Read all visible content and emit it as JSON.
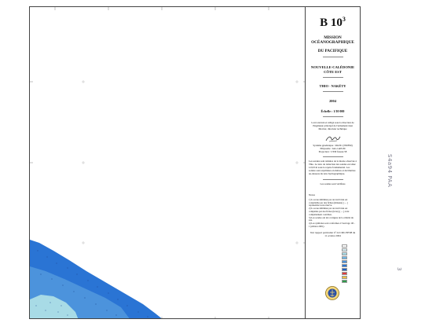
{
  "map": {
    "depth_colors": {
      "shallow": "#a8dbe6",
      "medium": "#4c93dc",
      "deep": "#2a74d4"
    }
  },
  "cartouche": {
    "sheet_id": "B 10",
    "sheet_sup": "3",
    "organisation_line1": "MISSION OCÉANOGRAPHIQUE",
    "organisation_line2": "DU PACIFIQUE",
    "region_line1": "NOUVELLE-CALÉDONIE",
    "region_line2": "CÔTE EST",
    "area": "THIO - NAKÉTY",
    "year": "2004",
    "scale": "Échelle : 1/10 000",
    "credit": "Levé exécuté et rédigé sous la direction de l'ingénieur principal de l'armement Jean Mercier, directeur technique",
    "geodesy_line1": "Système géodésique : RGNC (ITRF90)",
    "geodesy_line2": "Ellipsoïde : IAG GRS 80",
    "geodesy_line3": "Projection : UTM fuseau 58",
    "soundings_note": "Les sondes sont réduites de la marée observée à Thio. Le zéro de réduction des sondes est situé à 0,93 m sous le repère fondamental. Les sondes sont exprimées en mètres et décimètres au-dessous du zéro hydrographique.",
    "units_note": "Les sondes sont vérifiées",
    "notes_title": "Notes",
    "notes": [
      "1) La zone délimitée par un trait brisé est consultable par des fiches (minutes) [ ... ] représentée sous réserve.",
      "2) La zone délimitée par un trait brisé est complétée par des fiches (levés) [ ... ] à été complètement contrôlée.",
      "3) Les sondes ont été corrigées de la célérité du son.",
      "4) Les symboles sont conformes à l'ouvrage 1D - 1 (édition 2001)."
    ],
    "footer": "Voir rapport particulier n° 24 CMC/EPSH du 11 octobre 2004",
    "legend_colors": [
      "#ffffff",
      "#d6ecf2",
      "#a8dbe6",
      "#6fb6e6",
      "#4c93dc",
      "#2a74d4",
      "#1f5fbf",
      "#e03a3a",
      "#f0c040",
      "#2f9a4a"
    ]
  },
  "margin": {
    "handwritten_code": "S4a94 PAA",
    "handwritten_page": "3"
  }
}
